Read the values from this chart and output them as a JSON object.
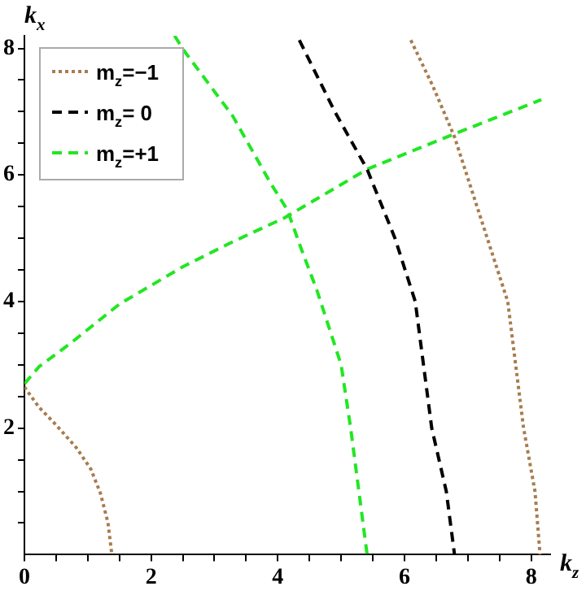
{
  "chart_data": {
    "type": "line",
    "xlabel": "k$_{z}$",
    "ylabel": "k$_{x}$",
    "xlim": [
      0,
      8.3
    ],
    "ylim": [
      0,
      8.2
    ],
    "xticks": [
      0,
      {
        "value": 0.5,
        "label": null
      },
      {
        "value": 1,
        "label": null
      },
      {
        "value": 1.5,
        "label": null
      },
      2,
      {
        "value": 2.5,
        "label": null
      },
      {
        "value": 3,
        "label": null
      },
      {
        "value": 3.5,
        "label": null
      },
      4,
      {
        "value": 4.5,
        "label": null
      },
      {
        "value": 5,
        "label": null
      },
      {
        "value": 5.5,
        "label": null
      },
      6,
      {
        "value": 6.5,
        "label": null
      },
      {
        "value": 7,
        "label": null
      },
      {
        "value": 7.5,
        "label": null
      },
      8
    ],
    "yticks": [
      {
        "value": 0.5,
        "label": null
      },
      {
        "value": 1,
        "label": null
      },
      {
        "value": 1.5,
        "label": null
      },
      2,
      {
        "value": 2.5,
        "label": null
      },
      {
        "value": 3,
        "label": null
      },
      {
        "value": 3.5,
        "label": null
      },
      4,
      {
        "value": 4.5,
        "label": null
      },
      {
        "value": 5,
        "label": null
      },
      {
        "value": 5.5,
        "label": null
      },
      6,
      {
        "value": 6.5,
        "label": null
      },
      {
        "value": 7,
        "label": null
      },
      {
        "value": 7.5,
        "label": null
      },
      8
    ],
    "grid": false,
    "legend": "top left",
    "marker": "none",
    "series": [
      {
        "name": "m$_{z}$=−1",
        "color": "#a87c4f",
        "line_style": "dotted",
        "x": [
          0,
          0.23,
          0.5,
          0.82,
          1.05,
          1.2,
          1.32,
          1.38
        ],
        "values": [
          2.65,
          2.33,
          2.05,
          1.69,
          1.35,
          0.97,
          0.5,
          0
        ]
      },
      {
        "name": "m$_{z}$= 0",
        "color": "#000000",
        "line_style": "dashed",
        "x": [
          4.34,
          4.9,
          5.41,
          5.85,
          6.17,
          6.43,
          6.66,
          6.79
        ],
        "values": [
          8.13,
          7,
          6.09,
          5,
          4,
          2,
          1,
          0
        ]
      },
      {
        "name": "m$_{z}$=+1",
        "color": "#22e622",
        "line_style": "dashed",
        "x": [
          2.37,
          2.53,
          3.29,
          3.88,
          4.15,
          4.36,
          4.62,
          5.0,
          5.15,
          5.28,
          5.41
        ],
        "values": [
          8.2,
          7.95,
          6.93,
          5.88,
          5.45,
          4.86,
          4.17,
          3,
          2,
          1,
          0
        ]
      },
      {
        "color": "#a87c4f",
        "line_style": "dotted",
        "x": [
          6.1,
          6.45,
          6.79,
          7.21,
          7.63,
          7.88,
          8.06,
          8.14
        ],
        "values": [
          8.13,
          7.4,
          6.6,
          5.3,
          4,
          2,
          1,
          0
        ]
      },
      {
        "color": "#22e622",
        "line_style": "dashed",
        "x": [
          0,
          0.23,
          0.74,
          1.5,
          2.5,
          3.3,
          4.1,
          5.41,
          6.79,
          8.16
        ],
        "values": [
          2.7,
          2.97,
          3.35,
          3.96,
          4.55,
          4.95,
          5.32,
          6.09,
          6.65,
          7.19
        ]
      }
    ]
  }
}
